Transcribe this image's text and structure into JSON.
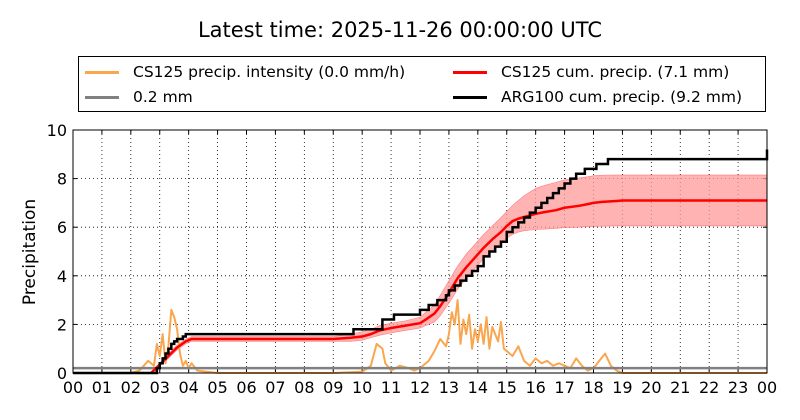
{
  "chart_data": {
    "type": "line",
    "title": "Latest time: 2025-11-26 00:00:00 UTC",
    "xlabel": "",
    "ylabel": "Precipitation",
    "x_unit": "hour of day (UTC)",
    "xlim": [
      0,
      24
    ],
    "ylim": [
      0,
      10
    ],
    "x_ticks": [
      "00",
      "01",
      "02",
      "03",
      "04",
      "05",
      "06",
      "07",
      "08",
      "09",
      "10",
      "11",
      "12",
      "13",
      "14",
      "15",
      "16",
      "17",
      "18",
      "19",
      "20",
      "21",
      "22",
      "23",
      "00"
    ],
    "y_ticks": [
      "0",
      "2",
      "4",
      "6",
      "8",
      "10"
    ],
    "grid": true,
    "legend_placement": "top",
    "colors": {
      "intensity": "#f9a64f",
      "threshold": "#808080",
      "cs125_cum": "#ff0000",
      "cs125_band": "#ff9999",
      "arg100_cum": "#000000"
    },
    "series": [
      {
        "name": "CS125 precip. intensity (0.0 mm/h)",
        "color": "#f9a64f",
        "x": [
          2.0,
          2.3,
          2.6,
          2.8,
          2.9,
          3.0,
          3.1,
          3.2,
          3.3,
          3.4,
          3.5,
          3.6,
          3.7,
          3.8,
          3.9,
          4.0,
          4.1,
          4.3,
          5.0,
          9.0,
          10.0,
          10.3,
          10.5,
          10.7,
          10.8,
          11.0,
          11.3,
          11.6,
          11.8,
          12.0,
          12.3,
          12.5,
          12.7,
          12.9,
          13.0,
          13.1,
          13.2,
          13.3,
          13.4,
          13.5,
          13.6,
          13.7,
          13.8,
          13.9,
          14.0,
          14.1,
          14.2,
          14.3,
          14.4,
          14.5,
          14.6,
          14.7,
          14.8,
          14.9,
          15.0,
          15.2,
          15.4,
          15.6,
          15.8,
          16.0,
          16.2,
          16.4,
          16.6,
          16.8,
          17.0,
          17.2,
          17.4,
          17.6,
          17.8,
          18.0,
          18.2,
          18.4,
          18.6,
          18.8,
          19.0,
          20.0,
          24.0
        ],
        "y": [
          0.0,
          0.1,
          0.5,
          0.3,
          1.2,
          0.7,
          1.6,
          0.4,
          1.1,
          2.6,
          2.3,
          1.8,
          0.8,
          0.3,
          0.5,
          0.2,
          0.4,
          0.1,
          0.0,
          0.0,
          0.05,
          0.3,
          1.2,
          1.0,
          0.4,
          0.1,
          0.3,
          0.2,
          0.1,
          0.2,
          0.5,
          0.9,
          1.4,
          1.1,
          1.6,
          2.5,
          2.0,
          3.0,
          1.2,
          2.2,
          1.6,
          2.4,
          1.0,
          1.8,
          1.3,
          2.0,
          1.2,
          2.3,
          1.0,
          1.9,
          1.6,
          1.3,
          2.1,
          1.0,
          0.9,
          0.7,
          1.1,
          0.5,
          0.3,
          0.6,
          0.4,
          0.5,
          0.3,
          0.4,
          0.3,
          0.2,
          0.6,
          0.3,
          0.1,
          0.2,
          0.5,
          0.8,
          0.3,
          0.1,
          0.0,
          0.0,
          0.0
        ]
      },
      {
        "name": "0.2 mm",
        "color": "#808080",
        "x": [
          0,
          24
        ],
        "y": [
          0.2,
          0.2
        ]
      },
      {
        "name": "CS125 cum. precip. (7.1 mm)",
        "color": "#ff0000",
        "x": [
          2.7,
          3.0,
          3.3,
          3.6,
          3.9,
          4.1,
          4.5,
          5.0,
          6.0,
          7.0,
          8.0,
          9.0,
          9.6,
          10.0,
          10.3,
          10.6,
          11.0,
          11.5,
          12.0,
          12.2,
          12.5,
          12.7,
          12.9,
          13.1,
          13.3,
          13.6,
          13.9,
          14.2,
          14.5,
          14.8,
          15.0,
          15.2,
          15.4,
          15.6,
          15.8,
          16.0,
          16.3,
          16.7,
          17.0,
          17.5,
          17.8,
          18.0,
          18.3,
          18.8,
          19.0,
          20.0,
          21.0,
          22.0,
          23.0,
          24.0
        ],
        "y": [
          0.0,
          0.35,
          0.7,
          1.05,
          1.3,
          1.4,
          1.4,
          1.4,
          1.4,
          1.4,
          1.4,
          1.4,
          1.45,
          1.5,
          1.6,
          1.75,
          1.85,
          1.95,
          2.05,
          2.2,
          2.45,
          2.75,
          3.1,
          3.5,
          3.9,
          4.35,
          4.75,
          5.15,
          5.5,
          5.8,
          6.05,
          6.25,
          6.35,
          6.42,
          6.48,
          6.55,
          6.62,
          6.7,
          6.8,
          6.88,
          6.95,
          7.0,
          7.04,
          7.08,
          7.1,
          7.1,
          7.1,
          7.1,
          7.1,
          7.1
        ],
        "band_lower": [
          0.0,
          0.3,
          0.6,
          0.95,
          1.2,
          1.3,
          1.3,
          1.3,
          1.3,
          1.3,
          1.3,
          1.3,
          1.3,
          1.35,
          1.45,
          1.55,
          1.65,
          1.75,
          1.85,
          1.95,
          2.1,
          2.35,
          2.7,
          3.05,
          3.45,
          3.9,
          4.3,
          4.7,
          5.05,
          5.35,
          5.55,
          5.7,
          5.8,
          5.85,
          5.88,
          5.9,
          5.92,
          5.95,
          5.98,
          6.0,
          6.02,
          6.03,
          6.04,
          6.05,
          6.05,
          6.05,
          6.05,
          6.05,
          6.05,
          6.05
        ],
        "band_upper": [
          0.0,
          0.4,
          0.8,
          1.15,
          1.4,
          1.5,
          1.5,
          1.5,
          1.5,
          1.5,
          1.5,
          1.5,
          1.6,
          1.7,
          1.8,
          1.95,
          2.05,
          2.15,
          2.3,
          2.5,
          2.8,
          3.2,
          3.6,
          4.0,
          4.4,
          4.9,
          5.3,
          5.7,
          6.05,
          6.4,
          6.65,
          6.9,
          7.1,
          7.3,
          7.45,
          7.6,
          7.72,
          7.85,
          7.95,
          8.03,
          8.08,
          8.12,
          8.14,
          8.15,
          8.15,
          8.15,
          8.15,
          8.15,
          8.15,
          8.15
        ]
      },
      {
        "name": "ARG100 cum. precip. (9.2 mm)",
        "color": "#000000",
        "step": true,
        "x": [
          0,
          2.9,
          3.0,
          3.1,
          3.2,
          3.3,
          3.4,
          3.5,
          3.6,
          3.8,
          3.9,
          4.0,
          4.1,
          9.7,
          10.7,
          11.1,
          11.5,
          12.0,
          12.3,
          12.6,
          12.9,
          13.0,
          13.2,
          13.4,
          13.6,
          13.8,
          14.0,
          14.2,
          14.4,
          14.6,
          14.8,
          15.0,
          15.2,
          15.4,
          15.6,
          15.8,
          16.0,
          16.2,
          16.4,
          16.6,
          16.8,
          17.0,
          17.2,
          17.4,
          17.7,
          18.1,
          18.5,
          24.0
        ],
        "y": [
          0,
          0.2,
          0.4,
          0.6,
          0.8,
          1.0,
          1.2,
          1.3,
          1.4,
          1.5,
          1.6,
          1.6,
          1.6,
          1.8,
          2.2,
          2.4,
          2.4,
          2.6,
          2.8,
          3.0,
          3.2,
          3.4,
          3.6,
          3.8,
          4.0,
          4.2,
          4.4,
          4.8,
          5.0,
          5.2,
          5.4,
          5.8,
          6.0,
          6.2,
          6.4,
          6.6,
          6.8,
          7.0,
          7.2,
          7.4,
          7.6,
          7.8,
          8.0,
          8.2,
          8.4,
          8.6,
          8.8,
          9.2
        ]
      }
    ]
  }
}
